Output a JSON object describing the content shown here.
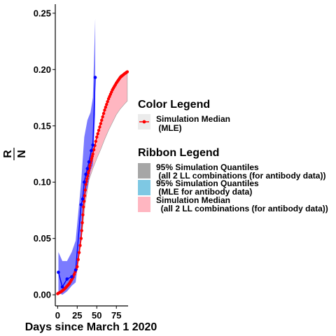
{
  "chart_data": {
    "type": "line",
    "xlabel": "Days since March 1 2020",
    "ylabel_numerator": "R",
    "ylabel_denominator": "N",
    "xlim": [
      -3,
      90
    ],
    "ylim": [
      -0.008,
      0.258
    ],
    "x_ticks": [
      0,
      25,
      50,
      75
    ],
    "y_ticks": [
      0.0,
      0.05,
      0.1,
      0.15,
      0.2,
      0.25
    ],
    "y_tick_labels": [
      "0.00",
      "0.05",
      "0.10",
      "0.15",
      "0.20",
      "0.25"
    ],
    "grid": false,
    "legend_position": "right",
    "colors": {
      "median_line": "#ff0000",
      "observed_line": "#0000ff",
      "ribbon_all_ll": "#a6a6a6",
      "ribbon_mle": "#7ec8e3",
      "ribbon_median": "#ffb6c1",
      "ribbon_observed": "#6464ff"
    },
    "simulation_median": {
      "x": [
        0,
        5,
        10,
        15,
        20,
        25,
        30,
        33,
        36,
        39,
        42,
        45,
        50,
        55,
        60,
        65,
        70,
        75,
        80,
        85,
        89
      ],
      "y": [
        0.001,
        0.003,
        0.006,
        0.01,
        0.016,
        0.025,
        0.05,
        0.078,
        0.098,
        0.108,
        0.117,
        0.125,
        0.14,
        0.152,
        0.164,
        0.174,
        0.182,
        0.188,
        0.193,
        0.196,
        0.198
      ]
    },
    "simulation_median_ribbon": {
      "x": [
        0,
        10,
        20,
        25,
        30,
        35,
        40,
        45,
        50,
        55,
        60,
        65,
        70,
        75,
        80,
        85,
        89
      ],
      "lower": [
        0.001,
        0.005,
        0.014,
        0.024,
        0.048,
        0.08,
        0.102,
        0.112,
        0.121,
        0.129,
        0.138,
        0.146,
        0.153,
        0.16,
        0.165,
        0.169,
        0.172
      ],
      "upper": [
        0.001,
        0.007,
        0.018,
        0.028,
        0.054,
        0.088,
        0.11,
        0.124,
        0.14,
        0.154,
        0.166,
        0.176,
        0.184,
        0.19,
        0.195,
        0.197,
        0.198
      ]
    },
    "observed": {
      "x": [
        1,
        6,
        12,
        18,
        23,
        30,
        32,
        34,
        36,
        38,
        40,
        43,
        45,
        48
      ],
      "y": [
        0.02,
        0.007,
        0.014,
        0.016,
        0.022,
        0.08,
        0.085,
        0.1,
        0.107,
        0.112,
        0.118,
        0.128,
        0.133,
        0.193
      ]
    },
    "observed_ribbon": {
      "x": [
        1,
        6,
        12,
        18,
        23,
        30,
        34,
        38,
        42,
        45,
        48
      ],
      "lower": [
        0.002,
        0.0,
        0.003,
        0.008,
        0.011,
        0.05,
        0.085,
        0.095,
        0.11,
        0.115,
        0.16
      ],
      "upper": [
        0.038,
        0.03,
        0.03,
        0.038,
        0.048,
        0.1,
        0.14,
        0.155,
        0.162,
        0.175,
        0.245
      ]
    },
    "legend": {
      "color_title": "Color  Legend",
      "color_items": [
        {
          "line1": "Simulation Median",
          "line2": " (MLE)",
          "color": "#ff0000"
        }
      ],
      "ribbon_title": "Ribbon  Legend",
      "ribbon_items": [
        {
          "line1": "95% Simulation Quantiles",
          "line2": " (all 2 LL combinations (for antibody data))",
          "color": "#a6a6a6"
        },
        {
          "line1": "95% Simulation Quantiles",
          "line2": " (MLE for antibody data)",
          "color": "#7ec8e3"
        },
        {
          "line1": "Simulation Median",
          "line2": "  (all 2 LL combinations (for antibody data))",
          "color": "#ffb6c1"
        }
      ]
    }
  }
}
